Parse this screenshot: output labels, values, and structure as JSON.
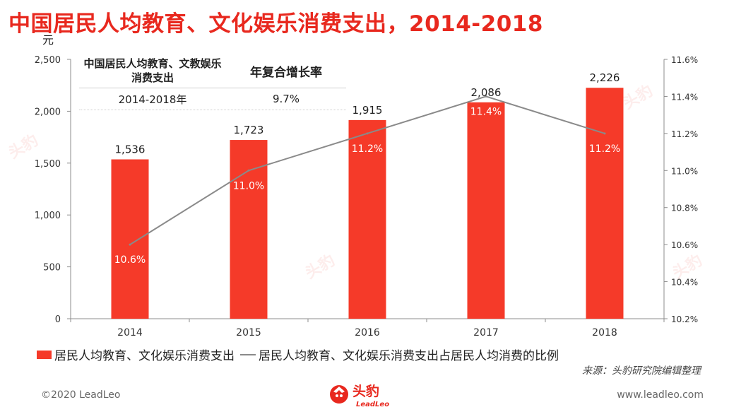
{
  "title": "中国居民人均教育、文化娱乐消费支出，2014-2018",
  "left_unit": "元",
  "cagr_table": {
    "head_col1": "中国居民人均教育、文教娱乐消费支出",
    "head_col2": "年复合增长率",
    "row_period": "2014-2018年",
    "row_value": "9.7%"
  },
  "legend": {
    "bar_label": "居民人均教育、文化娱乐消费支出",
    "line_label": "居民人均教育、文化娱乐消费支出占居民人均消费的比例"
  },
  "source": "来源：头豹研究院编辑整理",
  "footer": {
    "copyright": "©2020 LeadLeo",
    "website": "www.leadleo.com",
    "logo_text": "头豹",
    "logo_sub": "LeadLeo"
  },
  "colors": {
    "title": "#e8281e",
    "bar": "#f53a29",
    "line": "#8a8a8a"
  },
  "chart_data": {
    "type": "bar",
    "categories": [
      "2014",
      "2015",
      "2016",
      "2017",
      "2018"
    ],
    "series": [
      {
        "name": "居民人均教育、文化娱乐消费支出",
        "type": "bar",
        "axis": "left",
        "values": [
          1536,
          1723,
          1915,
          2086,
          2226
        ],
        "labels": [
          "1,536",
          "1,723",
          "1,915",
          "2,086",
          "2,226"
        ]
      },
      {
        "name": "居民人均教育、文化娱乐消费支出占居民人均消费的比例",
        "type": "line",
        "axis": "right",
        "values": [
          10.6,
          11.0,
          11.2,
          11.4,
          11.2
        ],
        "labels": [
          "10.6%",
          "11.0%",
          "11.2%",
          "11.4%",
          "11.2%"
        ]
      }
    ],
    "left_axis": {
      "ylim": [
        0,
        2500
      ],
      "ticks": [
        "0",
        "500",
        "1,000",
        "1,500",
        "2,000",
        "2,500"
      ]
    },
    "right_axis": {
      "ylim": [
        10.2,
        11.6
      ],
      "ticks": [
        "10.2%",
        "10.4%",
        "10.6%",
        "10.8%",
        "11.0%",
        "11.2%",
        "11.4%",
        "11.6%"
      ]
    }
  }
}
